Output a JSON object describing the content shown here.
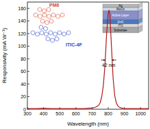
{
  "chart_data": {
    "type": "line",
    "x_label": "Wavelength (nm)",
    "y_label": "Responsivity (mA W⁻¹)",
    "x": [
      300,
      350,
      400,
      450,
      500,
      550,
      600,
      650,
      700,
      720,
      740,
      750,
      760,
      770,
      780,
      790,
      800,
      805,
      810,
      820,
      830,
      840,
      850,
      860,
      870,
      880,
      900,
      950,
      1000,
      1050
    ],
    "series": [
      {
        "name": null,
        "color": "#b01818",
        "values": [
          1,
          1,
          1.5,
          1,
          1,
          1,
          1,
          1,
          2,
          3,
          6,
          10,
          20,
          38,
          70,
          120,
          152,
          157,
          150,
          100,
          50,
          22,
          10,
          5,
          3,
          2,
          1,
          1,
          1,
          1
        ]
      }
    ],
    "xlim": [
      300,
      1050
    ],
    "xticks": [
      300,
      400,
      500,
      600,
      700,
      800,
      900,
      1000
    ],
    "ylim": [
      0,
      170
    ],
    "yticks": [
      0,
      20,
      40,
      60,
      80,
      100,
      120,
      140,
      160
    ],
    "annotations": [
      "42 nm",
      "PM6",
      "ITIC-4F"
    ],
    "inset_layers": [
      "Ag",
      "MoOx",
      "Active Layer",
      "ZnO",
      "ITO",
      "Substrate"
    ]
  }
}
